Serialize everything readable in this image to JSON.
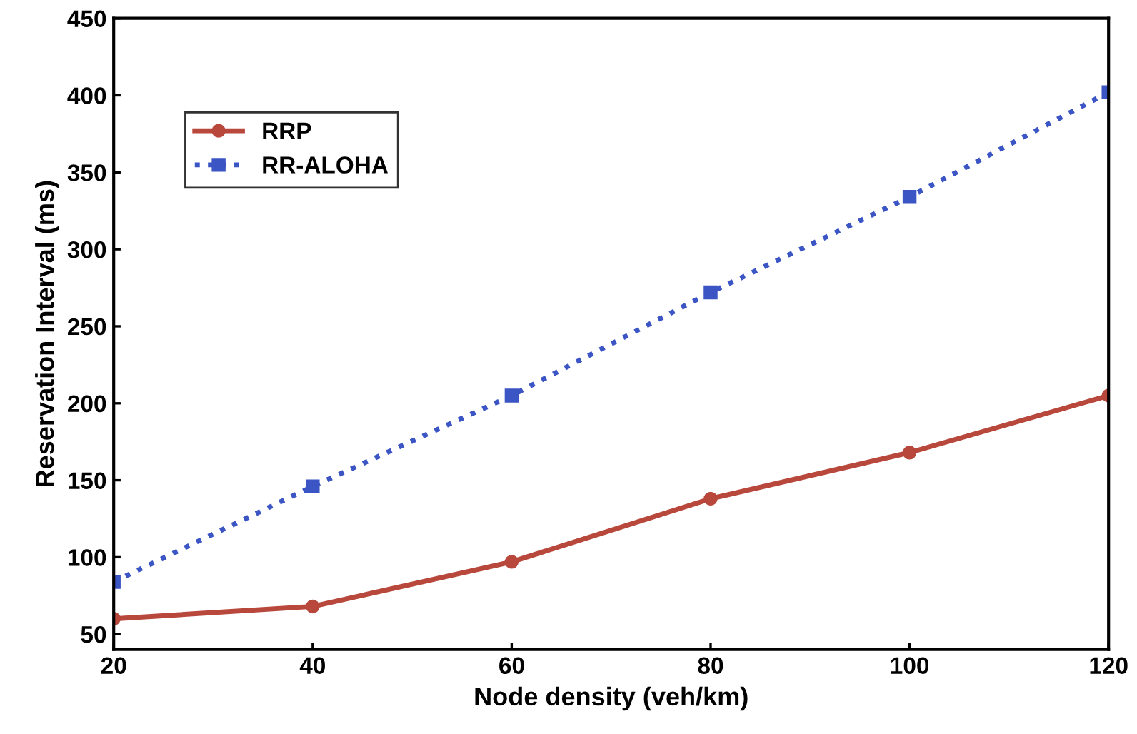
{
  "chart_data": {
    "type": "line",
    "xlabel": "Node density (veh/km)",
    "ylabel": "Reservation Interval (ms)",
    "x": [
      20,
      40,
      60,
      80,
      100,
      120
    ],
    "series": [
      {
        "name": "RRP",
        "color": "#b8473c",
        "values": [
          60,
          68,
          97,
          138,
          168,
          205
        ],
        "marker": "circle",
        "line_style": "solid"
      },
      {
        "name": "RR-ALOHA",
        "color": "#3b55c4",
        "values": [
          84,
          146,
          205,
          272,
          334,
          402
        ],
        "marker": "square",
        "line_style": "dotted"
      }
    ],
    "xlim": [
      20,
      120
    ],
    "xticks": [
      20,
      40,
      60,
      80,
      100,
      120
    ],
    "ylim": [
      40,
      450
    ],
    "yticks": [
      50,
      100,
      150,
      200,
      250,
      300,
      350,
      400,
      450
    ],
    "grid": false,
    "legend": "top left"
  }
}
